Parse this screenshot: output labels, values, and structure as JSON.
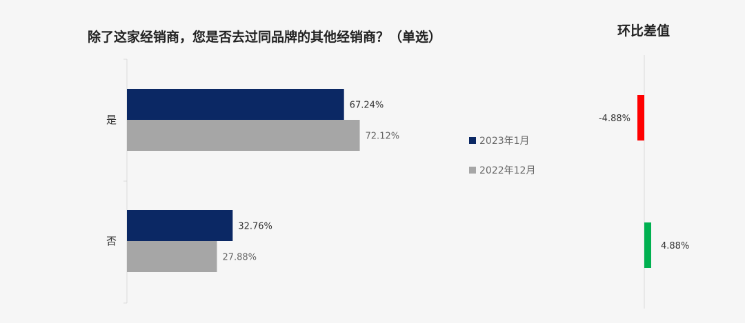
{
  "chart_data": [
    {
      "type": "bar",
      "orientation": "horizontal",
      "title": "除了这家经销商，您是否去过同品牌的其他经销商？（单选）",
      "categories": [
        "是",
        "否"
      ],
      "series": [
        {
          "name": "2023年1月",
          "color": "#0b2864",
          "values": [
            67.24,
            32.76
          ],
          "labels": [
            "67.24%",
            "32.76%"
          ]
        },
        {
          "name": "2022年12月",
          "color": "#a6a6a6",
          "values": [
            72.12,
            27.88
          ],
          "labels": [
            "72.12%",
            "27.88%"
          ]
        }
      ],
      "xlim": [
        0,
        100
      ],
      "legend": "right",
      "grid": false
    },
    {
      "type": "bar",
      "title": "环比差值",
      "categories": [
        "是",
        "否"
      ],
      "values": [
        -4.88,
        4.88
      ],
      "labels": [
        "-4.88%",
        "4.88%"
      ],
      "colors": [
        "#ff0000",
        "#00b050"
      ]
    }
  ]
}
